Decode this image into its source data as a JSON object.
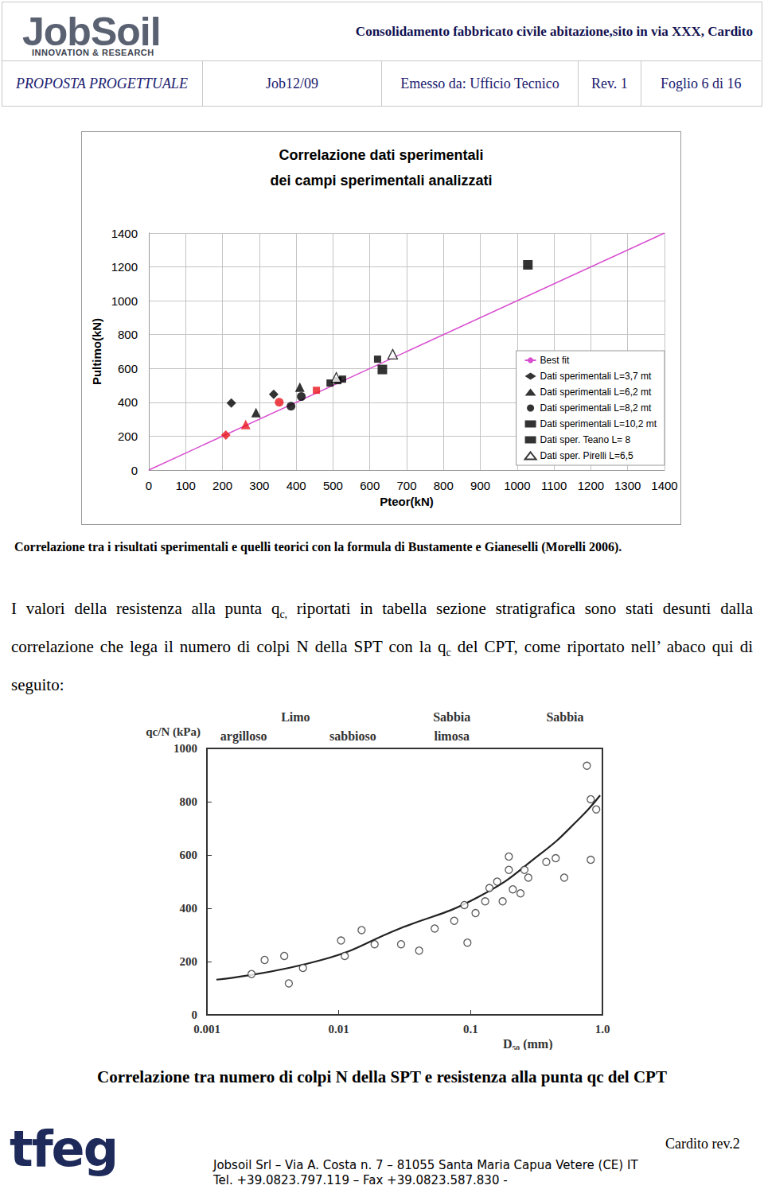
{
  "header": {
    "logo": "JobSoil",
    "logo_sub": "INNOVATION & RESEARCH",
    "title": "Consolidamento fabbricato civile abitazione,sito in via  XXX,  Cardito",
    "row": [
      "PROPOSTA PROGETTUALE",
      "Job12/09",
      "Emesso da: Ufficio Tecnico",
      "Rev. 1",
      "Foglio 6 di 16"
    ]
  },
  "chart_data": [
    {
      "type": "scatter",
      "title": "Correlazione dati sperimentali\ndei campi sperimentali analizzati",
      "x_label": "Pteor(kN)",
      "y_label": "Pultimo(kN)",
      "xlim": [
        0,
        1400
      ],
      "xticks": [
        0,
        100,
        200,
        300,
        400,
        500,
        600,
        700,
        800,
        900,
        1000,
        1100,
        1200,
        1300,
        1400
      ],
      "ylim": [
        0,
        1400
      ],
      "yticks": [
        0,
        200,
        400,
        600,
        800,
        1000,
        1200,
        1400
      ],
      "grid": true,
      "legend": "lower right",
      "series": [
        {
          "name": "Best fit",
          "type": "line",
          "line_style": "solid",
          "color": "#d94fd0",
          "x": [
            0,
            1400
          ],
          "values": [
            0,
            1400
          ]
        },
        {
          "name": "Dati sperimentali L=3,7 mt",
          "marker": "diamond",
          "color": "#000000",
          "x": [
            209,
            224,
            339
          ],
          "values": [
            207,
            396,
            448
          ],
          "colors": [
            "#e8141c",
            "#000000",
            "#000000"
          ]
        },
        {
          "name": "Dati sperimentali L=6,2 mt",
          "marker": "triangle",
          "color": "#000000",
          "x": [
            263,
            291,
            410
          ],
          "values": [
            269,
            339,
            490
          ],
          "colors": [
            "#e8141c",
            "#000000",
            "#000000"
          ]
        },
        {
          "name": "Dati sperimentali L=8,2 mt",
          "marker": "circle",
          "color": "#000000",
          "x": [
            354,
            386,
            414
          ],
          "values": [
            401,
            377,
            434
          ],
          "colors": [
            "#e8141c",
            "#000000",
            "#000000"
          ]
        },
        {
          "name": "Dati sperimentali L=10,2 mt",
          "marker": "square",
          "color": "#000000",
          "x": [
            455,
            492,
            513,
            526,
            621
          ],
          "values": [
            471,
            514,
            528,
            537,
            655
          ],
          "colors": [
            "#e8141c",
            "#000000",
            "#000000",
            "#000000",
            "#000000"
          ]
        },
        {
          "name": "Dati sper. Teano L= 8",
          "marker": "large_square",
          "color": "#000000",
          "x": [
            634,
            1029
          ],
          "values": [
            594,
            1212
          ]
        },
        {
          "name": "Dati sper. Pirelli L=6,5",
          "marker": "open_triangle",
          "color": "#000000",
          "x": [
            509,
            662
          ],
          "values": [
            547,
            684
          ]
        }
      ]
    },
    {
      "type": "scatter",
      "x_label": "D₅₀ (mm)",
      "y_label": "qc/N (kPa)",
      "log": "x",
      "xlim": [
        0.001,
        1
      ],
      "xticks": [
        0.001,
        0.01,
        0.1,
        {
          "value": 1,
          "label": "1.0"
        }
      ],
      "ylim": [
        0,
        1000
      ],
      "yticks": [
        0,
        200,
        400,
        600,
        800,
        1000
      ],
      "grid": false,
      "annotations": {
        "line1": [
          {
            "text": "Limo",
            "x": 0.0047
          },
          {
            "text": "Sabbia",
            "x": 0.072
          },
          {
            "text": "Sabbia",
            "x": 0.52
          }
        ],
        "line2": [
          {
            "text": "argilloso",
            "x": 0.0019
          },
          {
            "text": "sabbioso",
            "x": 0.0128
          },
          {
            "text": "limosa",
            "x": 0.072
          }
        ]
      },
      "series": [
        {
          "type": "scatter",
          "marker": "open_circle",
          "color": "#333333",
          "x": [
            0.00218,
            0.00274,
            0.00386,
            0.00418,
            0.00535,
            0.0104,
            0.0111,
            0.0149,
            0.0187,
            0.0297,
            0.0407,
            0.0534,
            0.0751,
            0.0897,
            0.0946,
            0.109,
            0.129,
            0.139,
            0.159,
            0.175,
            0.195,
            0.195,
            0.209,
            0.239,
            0.256,
            0.274,
            0.375,
            0.442,
            0.513,
            0.762,
            0.815,
            0.815,
            0.897
          ],
          "values": [
            153,
            206,
            221,
            118,
            176,
            279,
            221,
            318,
            265,
            265,
            241,
            324,
            353,
            412,
            271,
            382,
            426,
            476,
            500,
            426,
            544,
            594,
            471,
            456,
            544,
            515,
            574,
            588,
            515,
            935,
            582,
            809,
            771
          ]
        },
        {
          "type": "line",
          "line_style": "solid",
          "color": "#222222",
          "x": [
            0.00118,
            0.0074,
            0.029,
            0.113,
            0.337,
            0.664,
            0.96
          ],
          "values": [
            132,
            206,
            324,
            441,
            603,
            735,
            824
          ]
        }
      ]
    }
  ],
  "captions": [
    "Correlazione tra i risultati sperimentali e quelli teorici con la formula di Bustamente e Gianeselli (Morelli 2006).",
    "Correlazione tra numero di colpi N della SPT e resistenza alla punta qc del CPT"
  ],
  "paragraph": [
    {
      "text": "I valori della resistenza alla punta q"
    },
    {
      "sub": "c,"
    },
    {
      "text": " riportati in tabella sezione stratigrafica sono stati desunti dalla correlazione che lega il numero di colpi N della SPT con la q"
    },
    {
      "sub": "c"
    },
    {
      "text": " del CPT, come riportato nell’ abaco qui di seguito:"
    }
  ],
  "footer": {
    "logo": "tfeg",
    "revision": "Cardito rev.2",
    "address": "Jobsoil Srl – Via A. Costa n. 7 – 81055 Santa Maria Capua Vetere (CE) IT",
    "phone": "Tel. +39.0823.797.119 – Fax +39.0823.587.830 -"
  }
}
